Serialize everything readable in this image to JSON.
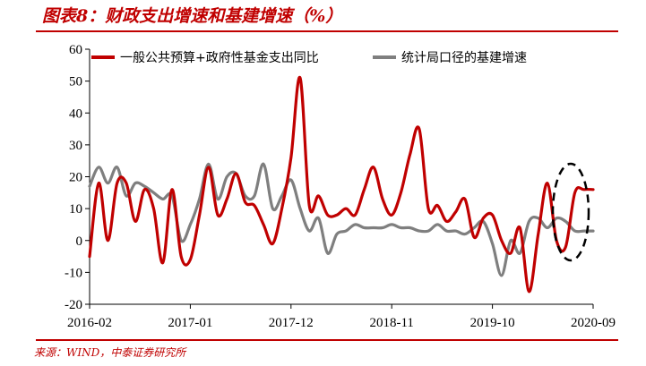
{
  "title": "图表8：财政支出增速和基建增速（%）",
  "source": "来源：WIND，中泰证券研究所",
  "chart_data": {
    "type": "line",
    "x_ticks": [
      "2016-02",
      "2017-01",
      "2017-12",
      "2018-11",
      "2019-10",
      "2020-09"
    ],
    "x_range": [
      "2016-02",
      "2020-09"
    ],
    "ylim": [
      -20,
      60
    ],
    "y_ticks": [
      "-20",
      "-10",
      "0",
      "10",
      "20",
      "30",
      "40",
      "50",
      "60"
    ],
    "grid": false,
    "legend_position": "top",
    "annotation": "dashed ellipse highlighting 2020-07 to 2020-09",
    "series": [
      {
        "name": "一般公共预算+政府性基金支出同比",
        "color": "#c00000",
        "x": [
          "2016-02",
          "2016-03",
          "2016-04",
          "2016-05",
          "2016-06",
          "2016-07",
          "2016-08",
          "2016-09",
          "2016-10",
          "2016-11",
          "2016-12",
          "2017-01",
          "2017-02",
          "2017-03",
          "2017-04",
          "2017-05",
          "2017-06",
          "2017-07",
          "2017-08",
          "2017-09",
          "2017-10",
          "2017-11",
          "2017-12",
          "2018-01",
          "2018-02",
          "2018-03",
          "2018-04",
          "2018-05",
          "2018-06",
          "2018-07",
          "2018-08",
          "2018-09",
          "2018-10",
          "2018-11",
          "2018-12",
          "2019-01",
          "2019-02",
          "2019-03",
          "2019-04",
          "2019-05",
          "2019-06",
          "2019-07",
          "2019-08",
          "2019-09",
          "2019-10",
          "2019-11",
          "2019-12",
          "2020-01",
          "2020-02",
          "2020-03",
          "2020-04",
          "2020-05",
          "2020-06",
          "2020-07",
          "2020-08",
          "2020-09"
        ],
        "values": [
          -5,
          18,
          0,
          18,
          18,
          6,
          16,
          10,
          -7,
          16,
          -5,
          -6,
          8,
          23,
          8,
          13,
          21,
          12,
          11,
          5,
          -1,
          10,
          26,
          51,
          11,
          14,
          8,
          8,
          10,
          8,
          16,
          23,
          13,
          8,
          15,
          27,
          35,
          10,
          11,
          6,
          9,
          13,
          1,
          7,
          8,
          0,
          -4,
          4,
          -16,
          2,
          18,
          0,
          -2,
          15,
          16,
          16
        ]
      },
      {
        "name": "统计局口径的基建增速",
        "color": "#7f7f7f",
        "x": [
          "2016-02",
          "2016-03",
          "2016-04",
          "2016-05",
          "2016-06",
          "2016-07",
          "2016-08",
          "2016-09",
          "2016-10",
          "2016-11",
          "2016-12",
          "2017-01",
          "2017-02",
          "2017-03",
          "2017-04",
          "2017-05",
          "2017-06",
          "2017-07",
          "2017-08",
          "2017-09",
          "2017-10",
          "2017-11",
          "2017-12",
          "2018-01",
          "2018-02",
          "2018-03",
          "2018-04",
          "2018-05",
          "2018-06",
          "2018-07",
          "2018-08",
          "2018-09",
          "2018-10",
          "2018-11",
          "2018-12",
          "2019-01",
          "2019-02",
          "2019-03",
          "2019-04",
          "2019-05",
          "2019-06",
          "2019-07",
          "2019-08",
          "2019-09",
          "2019-10",
          "2019-11",
          "2019-12",
          "2020-01",
          "2020-02",
          "2020-03",
          "2020-04",
          "2020-05",
          "2020-06",
          "2020-07",
          "2020-08",
          "2020-09"
        ],
        "values": [
          17,
          23,
          18,
          23,
          14,
          18,
          17,
          15,
          13,
          14,
          0,
          5,
          13,
          24,
          13,
          20,
          21,
          14,
          14,
          24,
          10,
          14,
          19,
          10,
          3,
          7,
          -4,
          2,
          3,
          5,
          4,
          4,
          4,
          5,
          4,
          4,
          3,
          3,
          5,
          3,
          3,
          2,
          4,
          6,
          -1,
          -11,
          0,
          -4,
          6,
          7,
          4,
          7,
          6,
          3,
          3,
          3
        ]
      }
    ]
  }
}
